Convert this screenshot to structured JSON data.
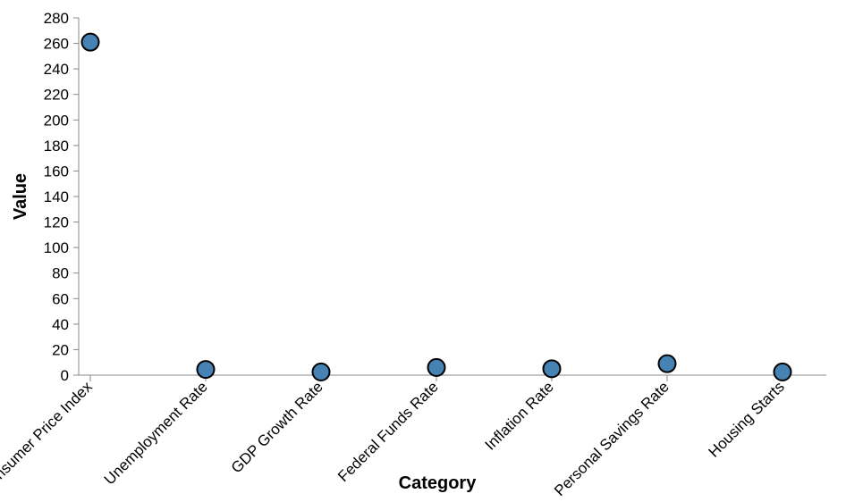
{
  "chart_data": {
    "type": "scatter",
    "categories": [
      "Consumer Price Index",
      "Unemployment Rate",
      "GDP Growth Rate",
      "Federal Funds Rate",
      "Inflation Rate",
      "Personal Savings Rate",
      "Housing Starts"
    ],
    "values": [
      261,
      4.5,
      2.5,
      6,
      5,
      9,
      2.5
    ],
    "xlabel": "Category",
    "ylabel": "Value",
    "ylim": [
      0,
      280
    ],
    "y_ticks": [
      0,
      20,
      40,
      60,
      80,
      100,
      120,
      140,
      160,
      180,
      200,
      220,
      240,
      260,
      280
    ],
    "grid": false,
    "colors": {
      "point_fill": "#4682b4",
      "point_stroke": "#000000",
      "axis": "#888888"
    }
  }
}
